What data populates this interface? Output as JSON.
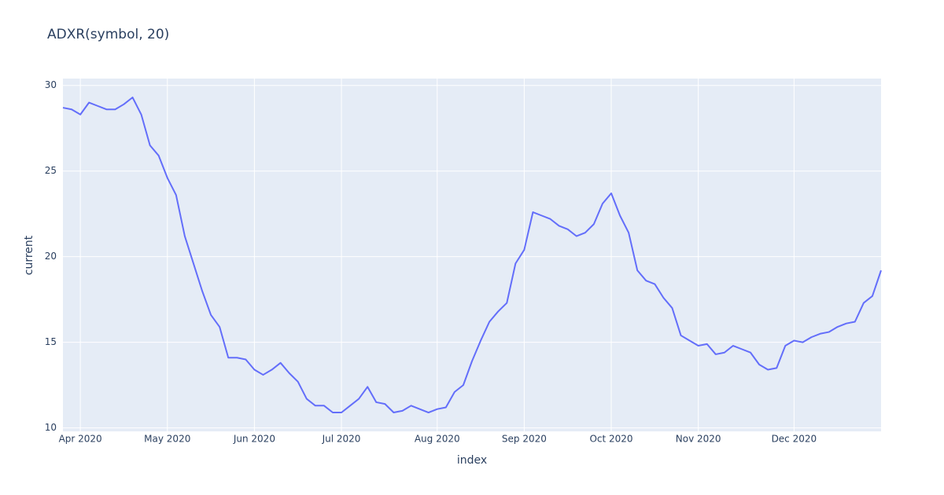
{
  "chart_data": {
    "type": "line",
    "title": "ADXR(symbol, 20)",
    "x_label": "index",
    "y_label": "current",
    "categories": [
      null,
      null,
      "Apr 2020",
      null,
      null,
      null,
      null,
      null,
      null,
      null,
      null,
      null,
      "May 2020",
      null,
      null,
      null,
      null,
      null,
      null,
      null,
      null,
      null,
      "Jun 2020",
      null,
      null,
      null,
      null,
      null,
      null,
      null,
      null,
      null,
      "Jul 2020",
      null,
      null,
      null,
      null,
      null,
      null,
      null,
      null,
      null,
      null,
      "Aug 2020",
      null,
      null,
      null,
      null,
      null,
      null,
      null,
      null,
      null,
      "Sep 2020",
      null,
      null,
      null,
      null,
      null,
      null,
      null,
      null,
      null,
      "Oct 2020",
      null,
      null,
      null,
      null,
      null,
      null,
      null,
      null,
      null,
      "Nov 2020",
      null,
      null,
      null,
      null,
      null,
      null,
      null,
      null,
      null,
      null,
      "Dec 2020",
      null,
      null,
      null,
      null,
      null,
      null,
      null,
      null,
      null,
      null
    ],
    "values": [
      28.7,
      28.6,
      28.3,
      29.0,
      28.8,
      28.6,
      28.6,
      28.9,
      29.3,
      28.3,
      26.5,
      25.9,
      24.6,
      23.6,
      21.2,
      19.6,
      18.0,
      16.6,
      15.9,
      14.1,
      14.1,
      14.0,
      13.4,
      13.1,
      13.4,
      13.8,
      13.2,
      12.7,
      11.7,
      11.3,
      11.3,
      10.9,
      10.9,
      11.3,
      11.7,
      12.4,
      11.5,
      11.4,
      10.9,
      11.0,
      11.3,
      11.1,
      10.9,
      11.1,
      11.2,
      12.1,
      12.5,
      13.9,
      15.1,
      16.2,
      16.8,
      17.3,
      19.6,
      20.4,
      22.6,
      22.4,
      22.2,
      21.8,
      21.6,
      21.2,
      21.4,
      21.9,
      23.1,
      23.7,
      22.4,
      21.4,
      19.2,
      18.6,
      18.4,
      17.6,
      17.0,
      15.4,
      15.1,
      14.8,
      14.9,
      14.3,
      14.4,
      14.8,
      14.6,
      14.4,
      13.7,
      13.4,
      13.5,
      14.8,
      15.1,
      15.0,
      15.3,
      15.5,
      15.6,
      15.9,
      16.1,
      16.2,
      17.3,
      17.7,
      19.2
    ],
    "color": "#636efa",
    "ylim": [
      9.8,
      30.4
    ],
    "yticks": [
      10,
      15,
      20,
      25,
      30
    ],
    "grid": true
  }
}
